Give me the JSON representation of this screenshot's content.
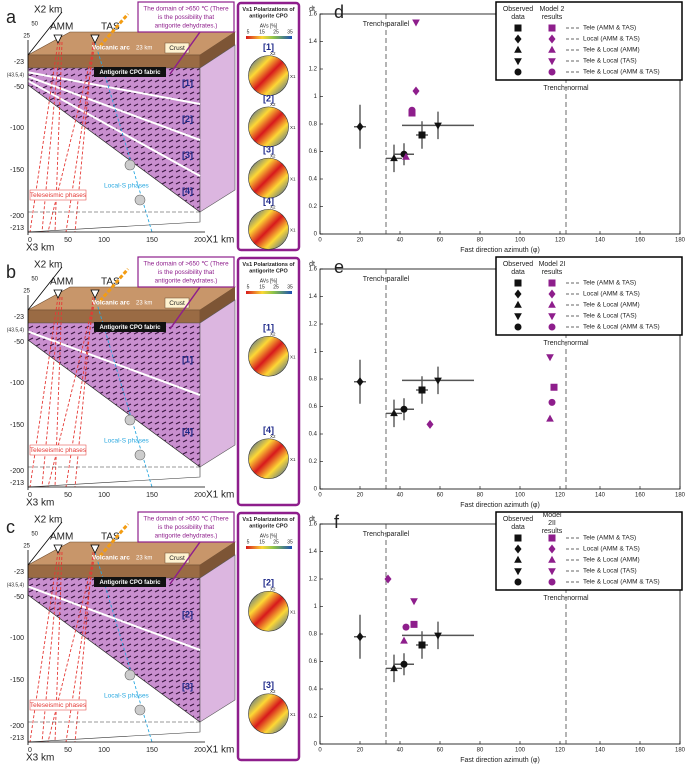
{
  "diagrams": [
    {
      "label": "a",
      "x2_label": "X2 km",
      "x3_label": "X3 km",
      "x1_label": "X1 km",
      "stations": [
        "AMM",
        "TAS"
      ],
      "top_ticks": [
        "50",
        "25"
      ],
      "depth_ticks": [
        "-23",
        "(43.5,4)",
        "-50",
        "-100",
        "-150",
        "-200",
        "-213"
      ],
      "x1_ticks": [
        "0",
        "50",
        "100",
        "150",
        "200"
      ],
      "annotation": "The domain of >650 ℃ (There is the possibility that antigorite dehydrates.)",
      "volcanic_arc": "Volcanic arc",
      "crust_depth": "23 km",
      "crust": "Crust",
      "fabric": "Antigorite CPO fabric",
      "blocks": [
        "[1]",
        "[2]",
        "[3]",
        "[4]"
      ],
      "local_s": "Local-S phases",
      "teleseismic": "Teleseismic phases",
      "polarization": {
        "title": "Vs1 Polarizations of antigorite CPO",
        "scale_label": "AVs [%]",
        "scale_ticks": [
          "5",
          "15",
          "25",
          "35"
        ],
        "panels": [
          "[1]",
          "[2]",
          "[3]",
          "[4]"
        ],
        "stereonet_axes": [
          "X2",
          "X1"
        ]
      }
    },
    {
      "label": "b",
      "x2_label": "X2 km",
      "x3_label": "X3 km",
      "x1_label": "X1 km",
      "stations": [
        "AMM",
        "TAS"
      ],
      "top_ticks": [
        "50",
        "25"
      ],
      "depth_ticks": [
        "-23",
        "(43.5,4)",
        "-50",
        "-100",
        "-150",
        "-200",
        "-213"
      ],
      "x1_ticks": [
        "0",
        "50",
        "100",
        "150",
        "200"
      ],
      "annotation": "The domain of >650 ℃ (There is the possibility that antigorite dehydrates.)",
      "volcanic_arc": "Volcanic arc",
      "crust_depth": "23 km",
      "crust": "Crust",
      "fabric": "Antigorite CPO fabric",
      "blocks": [
        "[1]",
        "[4]"
      ],
      "local_s": "Local-S phases",
      "teleseismic": "Teleseismic phases",
      "polarization": {
        "title": "Vs1 Polarizations of antigorite CPO",
        "scale_label": "AVs [%]",
        "scale_ticks": [
          "5",
          "15",
          "25",
          "35"
        ],
        "panels": [
          "[1]",
          "[4]"
        ],
        "stereonet_axes": [
          "X2",
          "X1"
        ]
      }
    },
    {
      "label": "c",
      "x2_label": "X2 km",
      "x3_label": "X3 km",
      "x1_label": "X1 km",
      "stations": [
        "AMM",
        "TAS"
      ],
      "top_ticks": [
        "50",
        "25"
      ],
      "depth_ticks": [
        "-23",
        "(43.5,4)",
        "-50",
        "-100",
        "-150",
        "-200",
        "-213"
      ],
      "x1_ticks": [
        "0",
        "50",
        "100",
        "150",
        "200"
      ],
      "annotation": "The domain of >650 ℃ (There is the possibility that antigorite dehydrates.)",
      "volcanic_arc": "Volcanic arc",
      "crust_depth": "23 km",
      "crust": "Crust",
      "fabric": "Antigorite CPO fabric",
      "blocks": [
        "[2]",
        "[3]"
      ],
      "local_s": "Local-S phases",
      "teleseismic": "Teleseismic phases",
      "polarization": {
        "title": "Vs1 Polarizations of antigorite CPO",
        "scale_label": "AVs [%]",
        "scale_ticks": [
          "5",
          "15",
          "25",
          "35"
        ],
        "panels": [
          "[2]",
          "[3]"
        ],
        "stereonet_axes": [
          "X2",
          "X1"
        ]
      }
    }
  ],
  "chart_data": [
    {
      "type": "scatter",
      "panel_label": "d",
      "xlabel": "Fast direction azimuth (φ)",
      "ylabel": "dt",
      "xlim": [
        0,
        180
      ],
      "xticks": [
        0,
        20,
        40,
        60,
        80,
        100,
        120,
        140,
        160,
        180
      ],
      "ylim": [
        0,
        1.6
      ],
      "yticks": [
        0,
        0.2,
        0.4,
        0.6,
        0.8,
        1,
        1.2,
        1.4,
        1.6
      ],
      "categories": [
        "Tele (AMM & TAS)",
        "Local (AMM & TAS)",
        "Tele & Local (AMM)",
        "Tele & Local (TAS)",
        "Tele & Local (AMM & TAS)"
      ],
      "markers": [
        "square",
        "diamond",
        "triangle-up",
        "triangle-down",
        "circle"
      ],
      "reference_lines": [
        {
          "value": 33,
          "label": "Trench-parallel"
        },
        {
          "value": 123,
          "label": "Trench-normal"
        }
      ],
      "series": [
        {
          "name": "Observed data",
          "color": "#111111",
          "x": [
            51,
            20,
            37,
            59,
            42
          ],
          "values": [
            0.72,
            0.78,
            0.55,
            0.79,
            0.58
          ],
          "xerr": [
            3,
            3,
            4,
            18,
            5
          ],
          "yerr": [
            0.1,
            0.16,
            0.1,
            0.1,
            0.08
          ]
        },
        {
          "name": "Model 2 results",
          "color": "#8e1e8c",
          "x": [
            46,
            48,
            43,
            48,
            46
          ],
          "values": [
            0.88,
            1.04,
            0.56,
            1.54,
            0.9
          ]
        }
      ]
    },
    {
      "type": "scatter",
      "panel_label": "e",
      "xlabel": "Fast direction azimuth (φ)",
      "ylabel": "dt",
      "xlim": [
        0,
        180
      ],
      "xticks": [
        0,
        20,
        40,
        60,
        80,
        100,
        120,
        140,
        160,
        180
      ],
      "ylim": [
        0,
        1.6
      ],
      "yticks": [
        0,
        0.2,
        0.4,
        0.6,
        0.8,
        1,
        1.2,
        1.4,
        1.6
      ],
      "categories": [
        "Tele (AMM & TAS)",
        "Local (AMM & TAS)",
        "Tele & Local (AMM)",
        "Tele & Local (TAS)",
        "Tele & Local (AMM & TAS)"
      ],
      "markers": [
        "square",
        "diamond",
        "triangle-up",
        "triangle-down",
        "circle"
      ],
      "reference_lines": [
        {
          "value": 33,
          "label": "Trench-parallel"
        },
        {
          "value": 123,
          "label": "Trench-normal"
        }
      ],
      "series": [
        {
          "name": "Observed data",
          "color": "#111111",
          "x": [
            51,
            20,
            37,
            59,
            42
          ],
          "values": [
            0.72,
            0.78,
            0.55,
            0.79,
            0.58
          ],
          "xerr": [
            3,
            3,
            4,
            18,
            5
          ],
          "yerr": [
            0.1,
            0.16,
            0.1,
            0.1,
            0.08
          ]
        },
        {
          "name": "Model 2I results",
          "color": "#8e1e8c",
          "x": [
            117,
            55,
            115,
            115,
            116
          ],
          "values": [
            0.74,
            0.47,
            0.51,
            0.96,
            0.63
          ]
        }
      ]
    },
    {
      "type": "scatter",
      "panel_label": "f",
      "xlabel": "Fast direction azimuth (φ)",
      "ylabel": "dt",
      "xlim": [
        0,
        180
      ],
      "xticks": [
        0,
        20,
        40,
        60,
        80,
        100,
        120,
        140,
        160,
        180
      ],
      "ylim": [
        0,
        1.6
      ],
      "yticks": [
        0,
        0.2,
        0.4,
        0.6,
        0.8,
        1,
        1.2,
        1.4,
        1.6
      ],
      "categories": [
        "Tele (AMM & TAS)",
        "Local (AMM & TAS)",
        "Tele & Local (AMM)",
        "Tele & Local (TAS)",
        "Tele & Local (AMM & TAS)"
      ],
      "markers": [
        "square",
        "diamond",
        "triangle-up",
        "triangle-down",
        "circle"
      ],
      "reference_lines": [
        {
          "value": 33,
          "label": "Trench-parallel"
        },
        {
          "value": 123,
          "label": "Trench-normal"
        }
      ],
      "series": [
        {
          "name": "Observed data",
          "color": "#111111",
          "x": [
            51,
            20,
            37,
            59,
            42
          ],
          "values": [
            0.72,
            0.78,
            0.55,
            0.79,
            0.58
          ],
          "xerr": [
            3,
            3,
            4,
            18,
            5
          ],
          "yerr": [
            0.1,
            0.16,
            0.1,
            0.1,
            0.08
          ]
        },
        {
          "name": "Model 2II results",
          "color": "#8e1e8c",
          "x": [
            47,
            34,
            42,
            47,
            43
          ],
          "values": [
            0.87,
            1.2,
            0.75,
            1.04,
            0.85
          ]
        }
      ]
    }
  ]
}
